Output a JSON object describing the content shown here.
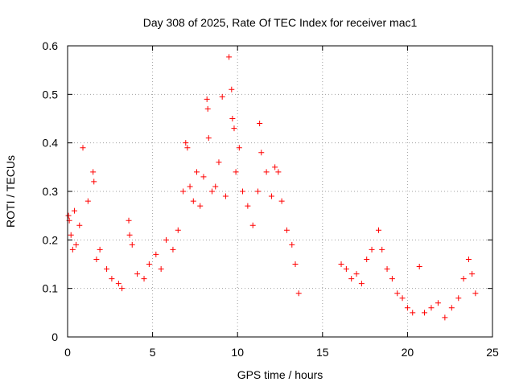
{
  "chart_data": {
    "type": "scatter",
    "title": "Day 308 of 2025, Rate Of TEC Index for receiver mac1",
    "xlabel": "GPS time / hours",
    "ylabel": "ROTI / TECUs",
    "xlim": [
      0,
      25
    ],
    "ylim": [
      0,
      0.6
    ],
    "xticks": [
      "0",
      "5",
      "10",
      "15",
      "20",
      "25"
    ],
    "yticks": [
      "0",
      "0.1",
      "0.2",
      "0.3",
      "0.4",
      "0.5",
      "0.6"
    ],
    "grid": true,
    "marker": "plus",
    "series": [
      {
        "color": "#ff0000",
        "points": [
          [
            0.05,
            0.25
          ],
          [
            0.1,
            0.24
          ],
          [
            0.2,
            0.21
          ],
          [
            0.3,
            0.18
          ],
          [
            0.4,
            0.26
          ],
          [
            0.5,
            0.19
          ],
          [
            0.7,
            0.23
          ],
          [
            0.9,
            0.39
          ],
          [
            1.2,
            0.28
          ],
          [
            1.5,
            0.34
          ],
          [
            1.55,
            0.32
          ],
          [
            1.7,
            0.16
          ],
          [
            1.9,
            0.18
          ],
          [
            2.3,
            0.14
          ],
          [
            2.6,
            0.12
          ],
          [
            3.0,
            0.11
          ],
          [
            3.2,
            0.1
          ],
          [
            3.6,
            0.24
          ],
          [
            3.65,
            0.21
          ],
          [
            3.8,
            0.19
          ],
          [
            4.1,
            0.13
          ],
          [
            4.5,
            0.12
          ],
          [
            4.8,
            0.15
          ],
          [
            5.2,
            0.17
          ],
          [
            5.5,
            0.14
          ],
          [
            5.8,
            0.2
          ],
          [
            6.2,
            0.18
          ],
          [
            6.5,
            0.22
          ],
          [
            6.8,
            0.3
          ],
          [
            6.95,
            0.4
          ],
          [
            7.05,
            0.39
          ],
          [
            7.2,
            0.31
          ],
          [
            7.4,
            0.28
          ],
          [
            7.6,
            0.34
          ],
          [
            7.8,
            0.27
          ],
          [
            8.0,
            0.33
          ],
          [
            8.2,
            0.49
          ],
          [
            8.25,
            0.47
          ],
          [
            8.3,
            0.41
          ],
          [
            8.5,
            0.3
          ],
          [
            8.7,
            0.31
          ],
          [
            8.9,
            0.36
          ],
          [
            9.1,
            0.495
          ],
          [
            9.3,
            0.29
          ],
          [
            9.5,
            0.577
          ],
          [
            9.65,
            0.51
          ],
          [
            9.7,
            0.45
          ],
          [
            9.8,
            0.43
          ],
          [
            9.9,
            0.34
          ],
          [
            10.1,
            0.39
          ],
          [
            10.3,
            0.3
          ],
          [
            10.6,
            0.27
          ],
          [
            10.9,
            0.23
          ],
          [
            11.2,
            0.3
          ],
          [
            11.3,
            0.44
          ],
          [
            11.4,
            0.38
          ],
          [
            11.7,
            0.34
          ],
          [
            12.0,
            0.29
          ],
          [
            12.2,
            0.35
          ],
          [
            12.4,
            0.34
          ],
          [
            12.6,
            0.28
          ],
          [
            12.9,
            0.22
          ],
          [
            13.2,
            0.19
          ],
          [
            13.4,
            0.15
          ],
          [
            13.6,
            0.09
          ],
          [
            16.1,
            0.15
          ],
          [
            16.4,
            0.14
          ],
          [
            16.7,
            0.12
          ],
          [
            17.0,
            0.13
          ],
          [
            17.3,
            0.11
          ],
          [
            17.6,
            0.16
          ],
          [
            17.9,
            0.18
          ],
          [
            18.3,
            0.22
          ],
          [
            18.5,
            0.18
          ],
          [
            18.8,
            0.14
          ],
          [
            19.1,
            0.12
          ],
          [
            19.4,
            0.09
          ],
          [
            19.7,
            0.08
          ],
          [
            20.0,
            0.06
          ],
          [
            20.3,
            0.05
          ],
          [
            20.7,
            0.145
          ],
          [
            21.0,
            0.05
          ],
          [
            21.4,
            0.06
          ],
          [
            21.8,
            0.07
          ],
          [
            22.2,
            0.04
          ],
          [
            22.6,
            0.06
          ],
          [
            23.0,
            0.08
          ],
          [
            23.3,
            0.12
          ],
          [
            23.6,
            0.16
          ],
          [
            23.8,
            0.13
          ],
          [
            24.0,
            0.09
          ]
        ]
      }
    ]
  }
}
